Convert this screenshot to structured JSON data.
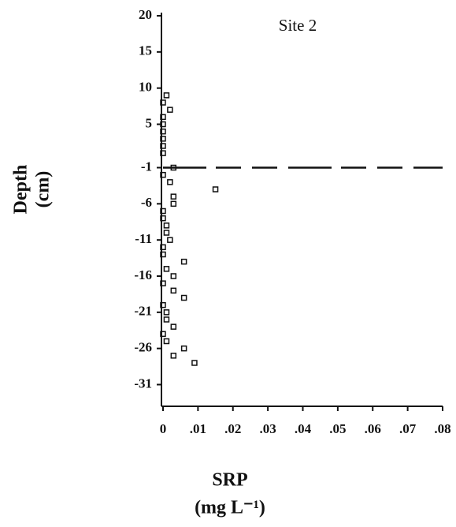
{
  "chart_data": {
    "type": "scatter",
    "annotation": "Site 2",
    "xlabel": [
      "SRP",
      "(mg L⁻¹)"
    ],
    "ylabel": [
      "Depth",
      "(cm)"
    ],
    "x": [
      0.001,
      0,
      0.002,
      0,
      0,
      0,
      0,
      0,
      0,
      0.003,
      0,
      0.002,
      0.015,
      0.003,
      0.003,
      0,
      0,
      0.001,
      0.001,
      0.002,
      0,
      0,
      0.006,
      0.001,
      0.003,
      0,
      0.003,
      0.006,
      0,
      0.001,
      0.001,
      0.003,
      0,
      0.001,
      0.006,
      0.003,
      0.009
    ],
    "values": [
      9,
      8,
      7,
      6,
      5,
      4,
      3,
      2,
      1,
      -1,
      -2,
      -3,
      -4,
      -5,
      -6,
      -7,
      -8,
      -9,
      -10,
      -11,
      -12,
      -13,
      -14,
      -15,
      -16,
      -17,
      -18,
      -19,
      -20,
      -21,
      -22,
      -23,
      -24,
      -25,
      -26,
      -27,
      -28
    ],
    "hline": -1,
    "color": "#111111",
    "xlim": [
      0,
      0.08
    ],
    "ylim": [
      -34,
      20
    ],
    "xticks": [
      0,
      {
        "value": 0.01,
        "label": ".01"
      },
      {
        "value": 0.02,
        "label": ".02"
      },
      {
        "value": 0.03,
        "label": ".03"
      },
      {
        "value": 0.04,
        "label": ".04"
      },
      {
        "value": 0.05,
        "label": ".05"
      },
      {
        "value": 0.06,
        "label": ".06"
      },
      {
        "value": 0.07,
        "label": ".07"
      },
      {
        "value": 0.08,
        "label": ".08"
      }
    ],
    "yticks": [
      20,
      15,
      10,
      5,
      -1,
      -6,
      -11,
      -16,
      -21,
      -26,
      -31
    ]
  }
}
